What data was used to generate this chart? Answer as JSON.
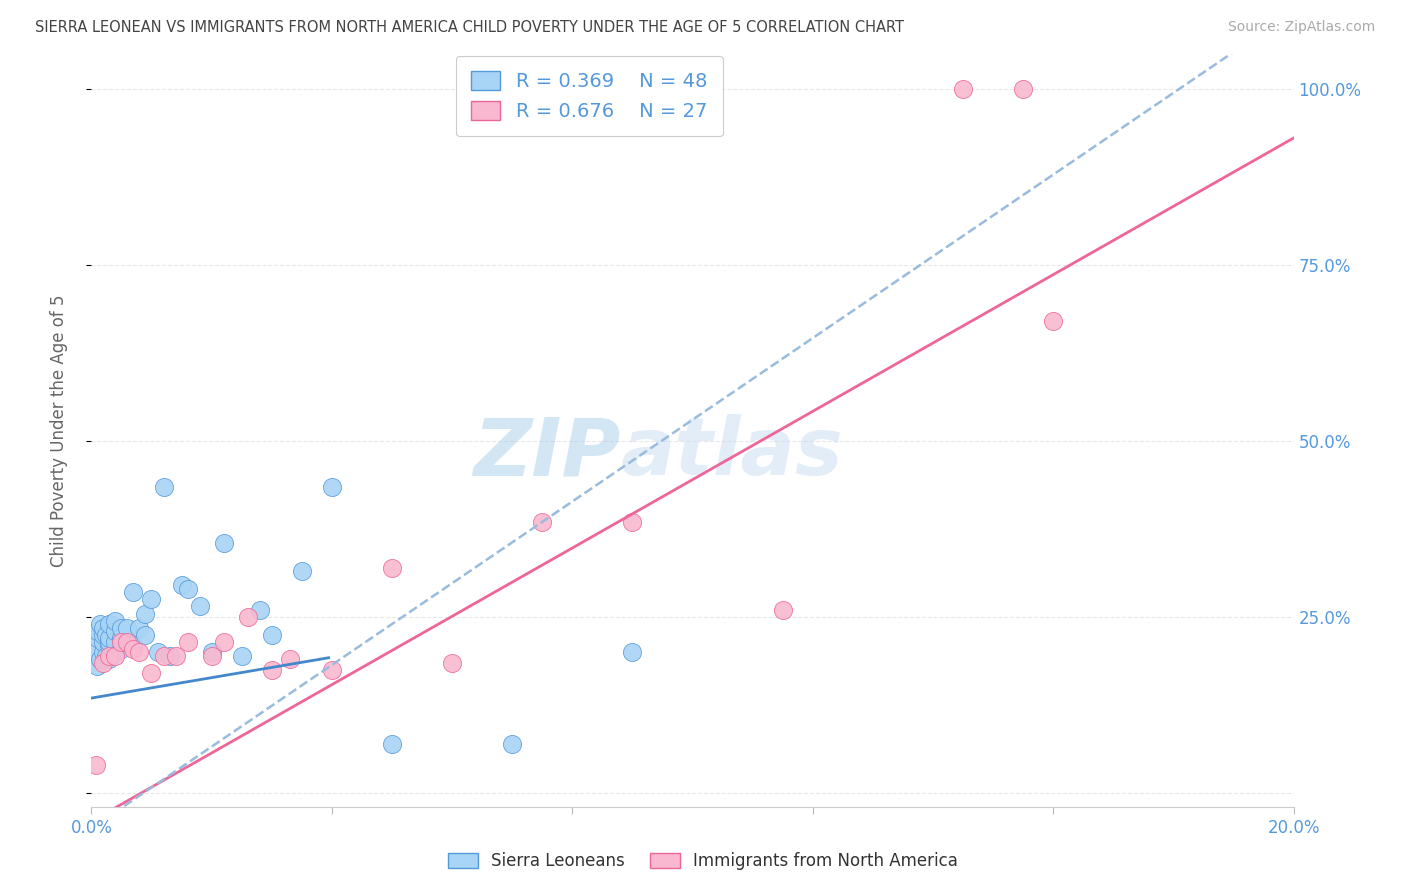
{
  "title": "SIERRA LEONEAN VS IMMIGRANTS FROM NORTH AMERICA CHILD POVERTY UNDER THE AGE OF 5 CORRELATION CHART",
  "source": "Source: ZipAtlas.com",
  "ylabel": "Child Poverty Under the Age of 5",
  "xlim": [
    0.0,
    0.2
  ],
  "ylim": [
    -0.02,
    1.05
  ],
  "sierra_x": [
    0.0005,
    0.001,
    0.001,
    0.001,
    0.0015,
    0.0015,
    0.002,
    0.002,
    0.002,
    0.002,
    0.0025,
    0.0025,
    0.003,
    0.003,
    0.003,
    0.003,
    0.003,
    0.004,
    0.004,
    0.004,
    0.004,
    0.005,
    0.005,
    0.005,
    0.006,
    0.006,
    0.007,
    0.007,
    0.008,
    0.009,
    0.009,
    0.01,
    0.011,
    0.012,
    0.013,
    0.015,
    0.016,
    0.018,
    0.02,
    0.022,
    0.025,
    0.028,
    0.03,
    0.035,
    0.04,
    0.05,
    0.07,
    0.09
  ],
  "sierra_y": [
    0.2,
    0.18,
    0.22,
    0.23,
    0.19,
    0.24,
    0.2,
    0.215,
    0.225,
    0.235,
    0.195,
    0.225,
    0.19,
    0.21,
    0.215,
    0.22,
    0.24,
    0.2,
    0.215,
    0.23,
    0.245,
    0.205,
    0.22,
    0.235,
    0.215,
    0.235,
    0.21,
    0.285,
    0.235,
    0.225,
    0.255,
    0.275,
    0.2,
    0.435,
    0.195,
    0.295,
    0.29,
    0.265,
    0.2,
    0.355,
    0.195,
    0.26,
    0.225,
    0.315,
    0.435,
    0.07,
    0.07,
    0.2
  ],
  "northam_x": [
    0.0008,
    0.002,
    0.003,
    0.004,
    0.005,
    0.006,
    0.007,
    0.008,
    0.01,
    0.012,
    0.014,
    0.016,
    0.02,
    0.022,
    0.026,
    0.03,
    0.033,
    0.04,
    0.05,
    0.06,
    0.065,
    0.075,
    0.09,
    0.115,
    0.145,
    0.155,
    0.16
  ],
  "northam_y": [
    0.04,
    0.185,
    0.195,
    0.195,
    0.215,
    0.215,
    0.205,
    0.2,
    0.17,
    0.195,
    0.195,
    0.215,
    0.195,
    0.215,
    0.25,
    0.175,
    0.19,
    0.175,
    0.32,
    0.185,
    1.0,
    0.385,
    0.385,
    0.26,
    1.0,
    1.0,
    0.67
  ],
  "sierra_color": "#a8d4f5",
  "northam_color": "#f9b8cf",
  "sierra_edge_color": "#5599dd",
  "northam_edge_color": "#ee6699",
  "sierra_line_color": "#4488cc",
  "northam_line_color": "#ee6699",
  "dashed_line_color": "#99bbdd",
  "watermark_zip": "ZIP",
  "watermark_atlas": "atlas",
  "R_sierra": 0.369,
  "N_sierra": 48,
  "R_northam": 0.676,
  "N_northam": 27,
  "background_color": "#ffffff",
  "grid_color": "#e8e8e8",
  "title_color": "#444444",
  "tick_label_color": "#5599dd",
  "legend_label_sierra": "Sierra Leoneans",
  "legend_label_northam": "Immigrants from North America",
  "sierra_line_intercept": 0.135,
  "sierra_line_slope": 1.45,
  "northam_line_intercept": -0.04,
  "northam_line_slope": 4.85,
  "dashed_line_intercept": -0.05,
  "dashed_line_slope": 5.8
}
